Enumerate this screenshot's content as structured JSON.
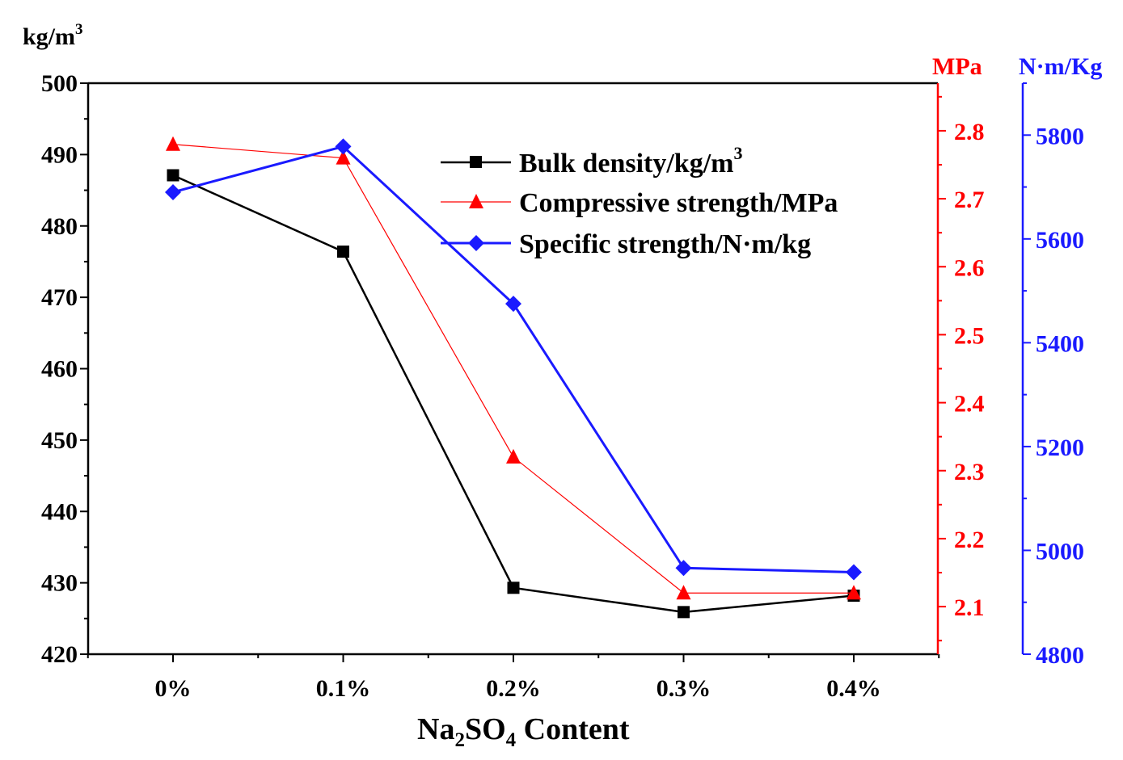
{
  "chart_data": {
    "type": "line",
    "categories": [
      "0%",
      "0.1%",
      "0.2%",
      "0.3%",
      "0.4%"
    ],
    "x_label": {
      "prefix": "Na",
      "sub1": "2",
      "mid": "SO",
      "sub2": "4",
      "suffix": " Content"
    },
    "axes": {
      "left": {
        "unit": {
          "base": "kg/m",
          "sup": "3"
        },
        "ylim": [
          420,
          500
        ],
        "ticks": [
          420,
          430,
          440,
          450,
          460,
          470,
          480,
          490,
          500
        ],
        "tick_labels": [
          "420",
          "430",
          "440",
          "450",
          "460",
          "470",
          "480",
          "490",
          "500"
        ],
        "color": "#000000"
      },
      "right1": {
        "unit": "MPa",
        "ylim": [
          2.03,
          2.87
        ],
        "ticks": [
          2.1,
          2.2,
          2.3,
          2.4,
          2.5,
          2.6,
          2.7,
          2.8
        ],
        "tick_labels": [
          "2.1",
          "2.2",
          "2.3",
          "2.4",
          "2.5",
          "2.6",
          "2.7",
          "2.8"
        ],
        "color": "#ff0000"
      },
      "right2": {
        "unit": "N·m/Kg",
        "ylim": [
          4800,
          5900
        ],
        "ticks": [
          4800,
          5000,
          5200,
          5400,
          5600,
          5800
        ],
        "tick_labels": [
          "4800",
          "5000",
          "5200",
          "5400",
          "5600",
          "5800"
        ],
        "color": "#1a1aff"
      }
    },
    "series": [
      {
        "name": "Bulk density/kg/m",
        "name_sup": "3",
        "axis": "left",
        "marker": "square",
        "color": "#000000",
        "values": [
          487.1,
          476.4,
          429.3,
          425.9,
          428.2
        ]
      },
      {
        "name": "Compressive strength/MPa",
        "name_sup": "",
        "axis": "right1",
        "marker": "triangle",
        "color": "#ff0000",
        "values": [
          2.78,
          2.76,
          2.32,
          2.12,
          2.12
        ]
      },
      {
        "name": "Specific strength/N·m/kg",
        "name_sup": "",
        "axis": "right2",
        "marker": "diamond",
        "color": "#1a1aff",
        "values": [
          5690,
          5778,
          5475,
          4966,
          4958
        ]
      }
    ]
  }
}
